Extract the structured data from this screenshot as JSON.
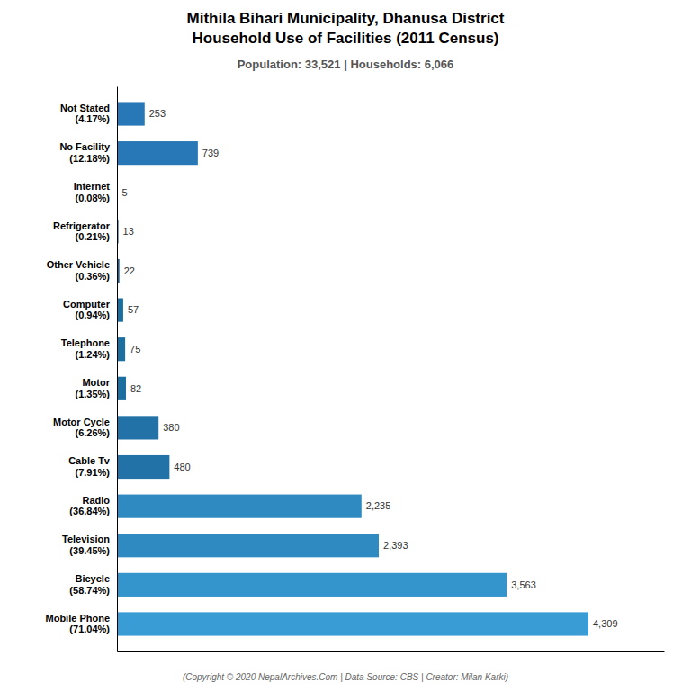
{
  "chart_data": {
    "type": "bar",
    "orientation": "horizontal",
    "title": [
      "Mithila Bihari Municipality, Dhanusa District",
      "Household Use of Facilities (2011 Census)"
    ],
    "subtitle": "Population: 33,521 | Households: 6,066",
    "annotations": [
      "(Copyright © 2020 NepalArchives.Com | Data Source: CBS | Creator: Milan Karki)"
    ],
    "categories": [
      "Not Stated\n(4.17%)",
      "No Facility\n(12.18%)",
      "Internet\n(0.08%)",
      "Refrigerator\n(0.21%)",
      "Other Vehicle\n(0.36%)",
      "Computer\n(0.94%)",
      "Telephone\n(1.24%)",
      "Motor\n(1.35%)",
      "Motor Cycle\n(6.26%)",
      "Cable Tv\n(7.91%)",
      "Radio\n(36.84%)",
      "Television\n(39.45%)",
      "Bicycle\n(58.74%)",
      "Mobile Phone\n(71.04%)"
    ],
    "values": [
      253,
      739,
      5,
      13,
      22,
      57,
      75,
      82,
      380,
      480,
      2235,
      2393,
      3563,
      4309
    ],
    "value_labels": [
      "253",
      "739",
      "5",
      "13",
      "22",
      "57",
      "75",
      "82",
      "380",
      "480",
      "2,235",
      "2,393",
      "3,563",
      "4,309"
    ],
    "data_labels": true,
    "colors": [
      "#2878b8",
      "#2878b8",
      "#1a5e90",
      "#1a5e90",
      "#1a5e90",
      "#1a6ea0",
      "#1a6ea0",
      "#1a6ea0",
      "#2272a8",
      "#2272a8",
      "#2e8ac0",
      "#2e8ac0",
      "#3494cc",
      "#3a9cd4"
    ],
    "xlim": [
      0,
      5000
    ],
    "tick_labels": "y",
    "grid": false
  }
}
